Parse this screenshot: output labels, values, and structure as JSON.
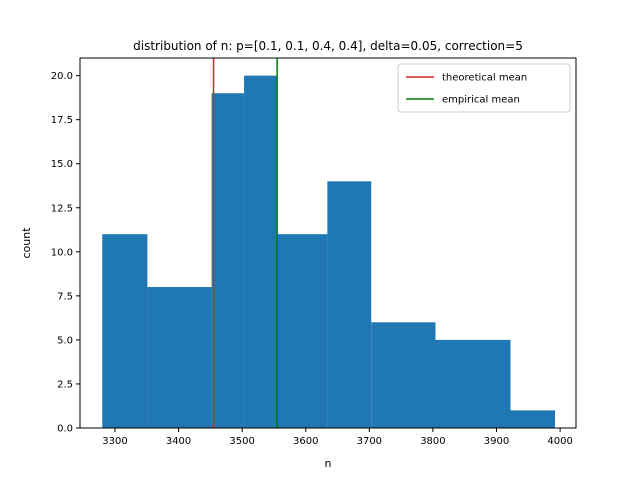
{
  "chart_data": {
    "type": "histogram",
    "title": "distribution of n: p=[0.1, 0.1, 0.4, 0.4], delta=0.05, correction=5",
    "xlabel": "n",
    "ylabel": "count",
    "xlim": [
      3245,
      4025
    ],
    "ylim": [
      0,
      21
    ],
    "xticks": [
      3300,
      3400,
      3500,
      3600,
      3700,
      3800,
      3900,
      4000
    ],
    "xtick_labels": [
      "3300",
      "3400",
      "3500",
      "3600",
      "3700",
      "3800",
      "3900",
      "4000"
    ],
    "yticks": [
      0,
      2.5,
      5,
      7.5,
      10,
      12.5,
      15,
      17.5,
      20
    ],
    "ytick_labels": [
      "0.0",
      "2.5",
      "5.0",
      "7.5",
      "10.0",
      "12.5",
      "15.0",
      "17.5",
      "20.0"
    ],
    "bins": [
      {
        "x0": 3280,
        "x1": 3351,
        "count": 11
      },
      {
        "x0": 3351,
        "x1": 3452,
        "count": 8
      },
      {
        "x0": 3452,
        "x1": 3503,
        "count": 19
      },
      {
        "x0": 3503,
        "x1": 3555,
        "count": 20
      },
      {
        "x0": 3555,
        "x1": 3634,
        "count": 11
      },
      {
        "x0": 3634,
        "x1": 3703,
        "count": 14
      },
      {
        "x0": 3703,
        "x1": 3804,
        "count": 6
      },
      {
        "x0": 3804,
        "x1": 3922,
        "count": 5
      },
      {
        "x0": 3922,
        "x1": 3992,
        "count": 1
      }
    ],
    "vlines": [
      {
        "name": "theoretical mean",
        "x": 3455,
        "color": "#d62728"
      },
      {
        "name": "empirical mean",
        "x": 3555,
        "color": "#008000"
      }
    ],
    "bar_color": "#1f77b4",
    "legend_position": "top-right",
    "grid": false
  }
}
